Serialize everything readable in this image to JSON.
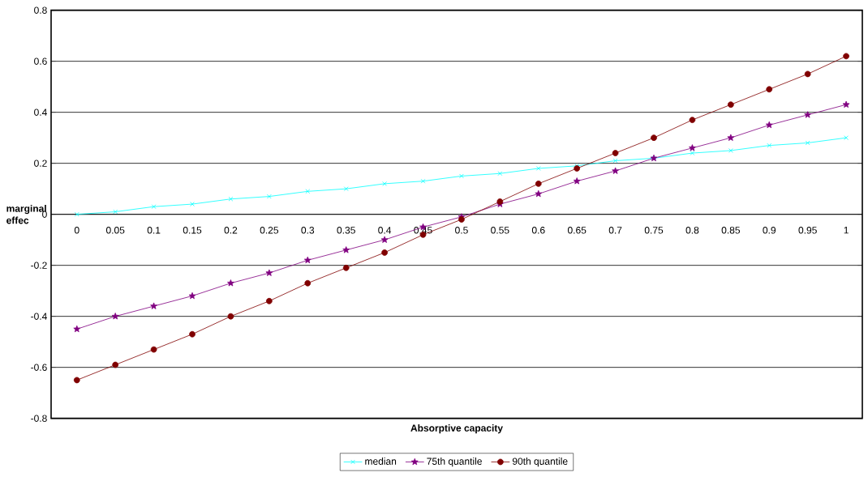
{
  "chart_data": {
    "type": "line",
    "xlabel": "Absorptive capacity",
    "ylabel": "marginal effec",
    "categories": [
      "0",
      "0.05",
      "0.1",
      "0.15",
      "0.2",
      "0.25",
      "0.3",
      "0.35",
      "0.4",
      "0.45",
      "0.5",
      "0.55",
      "0.6",
      "0.65",
      "0.7",
      "0.75",
      "0.8",
      "0.85",
      "0.9",
      "0.95",
      "1"
    ],
    "series": [
      {
        "name": "median",
        "color": "#00ffff",
        "marker": "cross",
        "values": [
          0,
          0.01,
          0.03,
          0.04,
          0.06,
          0.07,
          0.09,
          0.1,
          0.12,
          0.13,
          0.15,
          0.16,
          0.18,
          0.19,
          0.21,
          0.22,
          0.24,
          0.25,
          0.27,
          0.28,
          0.3
        ]
      },
      {
        "name": "75th quantile",
        "color": "#800080",
        "marker": "star",
        "values": [
          -0.45,
          -0.4,
          -0.36,
          -0.32,
          -0.27,
          -0.23,
          -0.18,
          -0.14,
          -0.1,
          -0.05,
          -0.01,
          0.04,
          0.08,
          0.13,
          0.17,
          0.22,
          0.26,
          0.3,
          0.35,
          0.39,
          0.43
        ]
      },
      {
        "name": "90th quantile",
        "color": "#800000",
        "marker": "circle",
        "values": [
          -0.65,
          -0.59,
          -0.53,
          -0.47,
          -0.4,
          -0.34,
          -0.27,
          -0.21,
          -0.15,
          -0.08,
          -0.02,
          0.05,
          0.12,
          0.18,
          0.24,
          0.3,
          0.37,
          0.43,
          0.49,
          0.55,
          0.62
        ]
      }
    ],
    "ylim": [
      -0.8,
      0.8
    ],
    "yticks": [
      -0.8,
      -0.6,
      -0.4,
      -0.2,
      0,
      0.2,
      0.4,
      0.6,
      0.8
    ],
    "grid": "y",
    "legend": "bottom",
    "line_style": "solid"
  }
}
